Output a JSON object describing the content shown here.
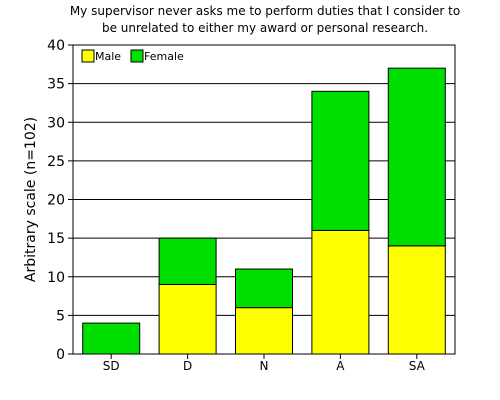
{
  "chart_data": {
    "type": "bar",
    "stacked": true,
    "title": [
      "My supervisor never asks me to perform duties that I consider to",
      "be unrelated to either my award or personal research."
    ],
    "xlabel": "",
    "ylabel": "Arbitrary scale (n=102)",
    "categories": [
      "SD",
      "D",
      "N",
      "A",
      "SA"
    ],
    "series": [
      {
        "name": "Male",
        "color": "#ffff00",
        "values": [
          0,
          9,
          6,
          16,
          14
        ]
      },
      {
        "name": "Female",
        "color": "#00e000",
        "values": [
          4,
          6,
          5,
          18,
          23
        ]
      }
    ],
    "ylim": [
      0,
      40
    ],
    "yticks": [
      0,
      5,
      10,
      15,
      20,
      25,
      30,
      35,
      40
    ],
    "grid": "horizontal",
    "legend_position": "top-left"
  }
}
